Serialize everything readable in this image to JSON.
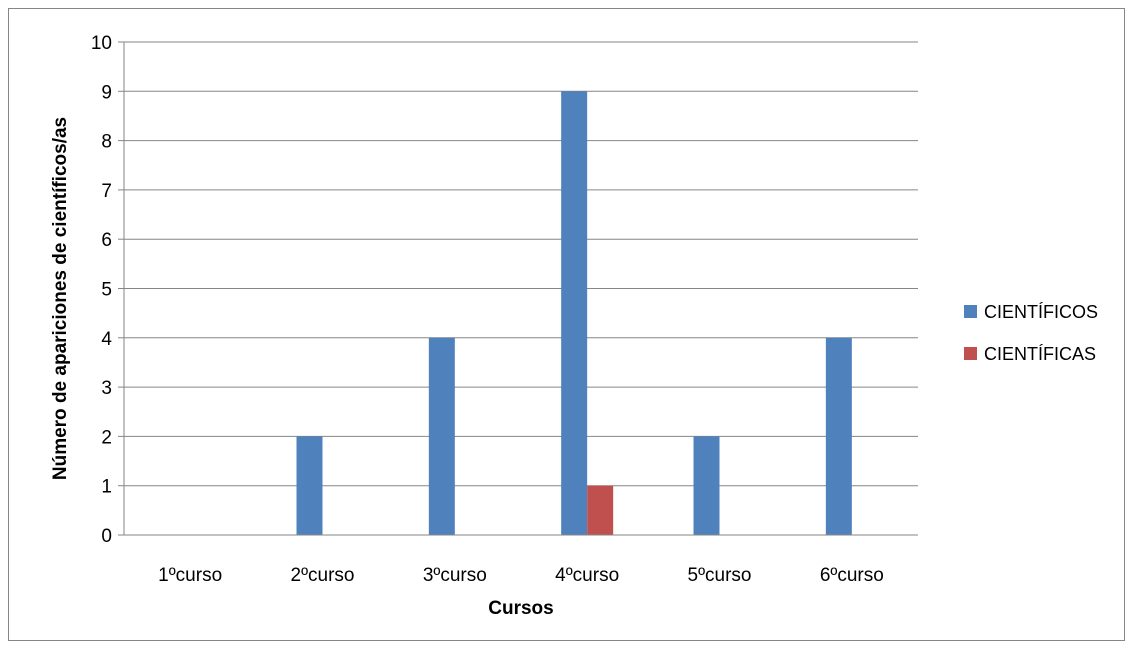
{
  "chart_data": {
    "type": "bar",
    "title": "",
    "xlabel": "Cursos",
    "ylabel": "Número de apariciones de científicos/as",
    "categories": [
      "1ºcurso",
      "2ºcurso",
      "3ºcurso",
      "4ºcurso",
      "5ºcurso",
      "6ºcurso"
    ],
    "series": [
      {
        "name": "CIENTÍFICOS",
        "values": [
          0,
          2,
          4,
          9,
          2,
          4
        ],
        "color": "#4f81bd"
      },
      {
        "name": "CIENTÍFICAS",
        "values": [
          0,
          0,
          0,
          1,
          0,
          0
        ],
        "color": "#c0504d"
      }
    ],
    "ylim": [
      0,
      10
    ],
    "yticks": [
      "0",
      "1",
      "2",
      "3",
      "4",
      "5",
      "6",
      "7",
      "8",
      "9",
      "10"
    ],
    "grid": true,
    "legend_position": "right"
  }
}
